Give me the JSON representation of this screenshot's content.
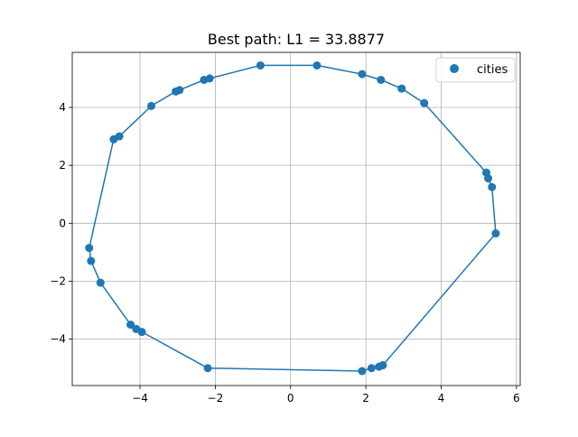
{
  "colors": {
    "series": "#1f77b4",
    "grid": "#b0b0b0",
    "axis": "#000000",
    "background": "#ffffff"
  },
  "chart_data": {
    "type": "scatter",
    "title": "Best path: L1 = 33.8877",
    "xlabel": "",
    "ylabel": "",
    "xlim": [
      -5.8,
      6.1
    ],
    "ylim": [
      -5.6,
      5.9
    ],
    "xticks": [
      -4,
      -2,
      0,
      2,
      4,
      6
    ],
    "yticks": [
      -4,
      -2,
      0,
      2,
      4
    ],
    "xtick_labels": [
      "−4",
      "−2",
      "0",
      "2",
      "4",
      "6"
    ],
    "ytick_labels": [
      "−4",
      "−2",
      "0",
      "2",
      "4"
    ],
    "grid": true,
    "legend": {
      "location": "upper right",
      "entries": [
        "cities"
      ]
    },
    "series": [
      {
        "name": "cities",
        "path_closed": true,
        "x": [
          0.7,
          1.9,
          2.4,
          2.95,
          3.55,
          5.2,
          5.25,
          5.35,
          5.45,
          2.45,
          2.35,
          2.15,
          1.9,
          -2.2,
          -3.95,
          -4.1,
          -4.25,
          -5.05,
          -5.3,
          -5.35,
          -4.7,
          -4.55,
          -3.7,
          -3.05,
          -2.95,
          -2.3,
          -2.15,
          -0.8
        ],
        "y": [
          5.45,
          5.15,
          4.95,
          4.65,
          4.15,
          1.75,
          1.55,
          1.25,
          -0.35,
          -4.9,
          -4.95,
          -5.0,
          -5.1,
          -5.0,
          -3.75,
          -3.65,
          -3.5,
          -2.05,
          -1.3,
          -0.85,
          2.9,
          3.0,
          4.05,
          4.55,
          4.6,
          4.95,
          5.0,
          5.45
        ]
      }
    ]
  }
}
